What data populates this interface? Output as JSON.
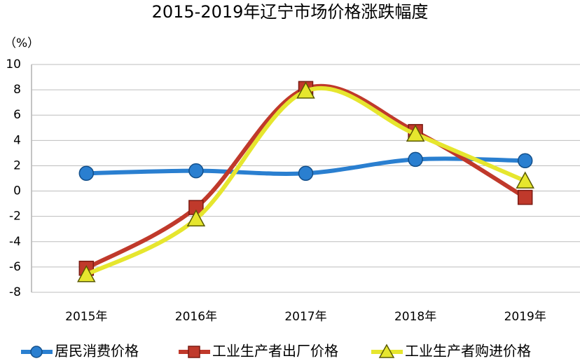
{
  "chart_data": {
    "type": "line",
    "title": "2015-2019年辽宁市场价格涨跌幅度",
    "y_unit": "（%）",
    "categories": [
      "2015年",
      "2016年",
      "2017年",
      "2018年",
      "2019年"
    ],
    "series": [
      {
        "name": "居民消费价格",
        "color": "#2a7fd0",
        "marker": "circle",
        "values": [
          1.4,
          1.6,
          1.4,
          2.5,
          2.4
        ]
      },
      {
        "name": "工业生产者出厂价格",
        "color": "#c0392b",
        "marker": "square",
        "values": [
          -6.1,
          -1.3,
          8.1,
          4.7,
          -0.5
        ]
      },
      {
        "name": "工业生产者购进价格",
        "color": "#e6e62e",
        "marker": "triangle",
        "values": [
          -6.6,
          -2.2,
          7.9,
          4.5,
          0.8
        ]
      }
    ],
    "ylim": [
      -8,
      10
    ],
    "yticks": [
      -8,
      -6,
      -4,
      -2,
      0,
      2,
      4,
      6,
      8,
      10
    ],
    "grid": true,
    "legend": "bottom"
  }
}
